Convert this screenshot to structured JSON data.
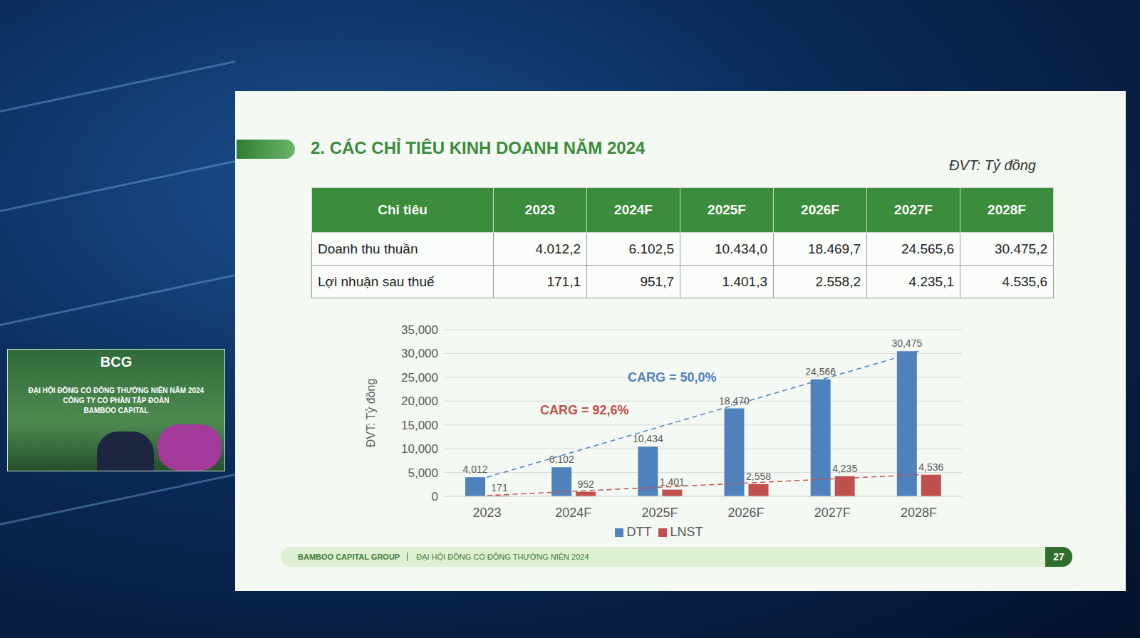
{
  "slide": {
    "title": "2. CÁC CHỈ TIÊU KINH DOANH NĂM 2024",
    "unit": "ĐVT: Tỷ đồng",
    "footer": {
      "company": "BAMBOO CAPITAL GROUP",
      "event": "ĐẠI HỘI ĐỒNG CỔ ĐÔNG THƯỜNG NIÊN 2024",
      "page": "27"
    }
  },
  "table": {
    "header": [
      "Chỉ tiêu",
      "2023",
      "2024F",
      "2025F",
      "2026F",
      "2027F",
      "2028F"
    ],
    "rows": [
      [
        "Doanh thu thuần",
        "4.012,2",
        "6.102,5",
        "10.434,0",
        "18.469,7",
        "24.565,6",
        "30.475,2"
      ],
      [
        "Lợi nhuận sau thuế",
        "171,1",
        "951,7",
        "1.401,3",
        "2.558,2",
        "4.235,1",
        "4.535,6"
      ]
    ]
  },
  "chart_data": {
    "type": "bar",
    "categories": [
      "2023",
      "2024F",
      "2025F",
      "2026F",
      "2027F",
      "2028F"
    ],
    "series": [
      {
        "name": "DTT",
        "color": "#4f81bd",
        "values": [
          4012,
          6102,
          10434,
          18470,
          24566,
          30475
        ],
        "value_labels": [
          "4,012",
          "6,102",
          "10,434",
          "18,470",
          "24,566",
          "30,475"
        ]
      },
      {
        "name": "LNST",
        "color": "#c0504d",
        "values": [
          171,
          952,
          1401,
          2558,
          4235,
          4536
        ],
        "value_labels": [
          "171",
          "952",
          "1,401",
          "2,558",
          "4,235",
          "4,536"
        ]
      }
    ],
    "ylim": [
      0,
      35000
    ],
    "yticks": [
      0,
      {
        "value": 5000,
        "label": "5,000"
      },
      {
        "value": 10000,
        "label": "10,000"
      },
      {
        "value": 15000,
        "label": "15,000"
      },
      {
        "value": 20000,
        "label": "20,000"
      },
      {
        "value": 25000,
        "label": "25,000"
      },
      {
        "value": 30000,
        "label": "30,000"
      },
      {
        "value": 35000,
        "label": "35,000"
      }
    ],
    "y_label": "ĐVT: Tỷ đồng",
    "annotations": [
      {
        "text": "CARG = 50,0%",
        "series": "DTT"
      },
      {
        "text": "CARG = 92,6%",
        "series": "LNST"
      }
    ],
    "grid": true,
    "legend": "bottom",
    "data_labels": true
  },
  "inset": {
    "logo": "BCG",
    "lines": [
      "ĐẠI HỘI ĐỒNG CỔ ĐÔNG THƯỜNG NIÊN NĂM 2024",
      "CÔNG TY CỔ PHẦN TẬP ĐOÀN",
      "BAMBOO CAPITAL"
    ]
  }
}
